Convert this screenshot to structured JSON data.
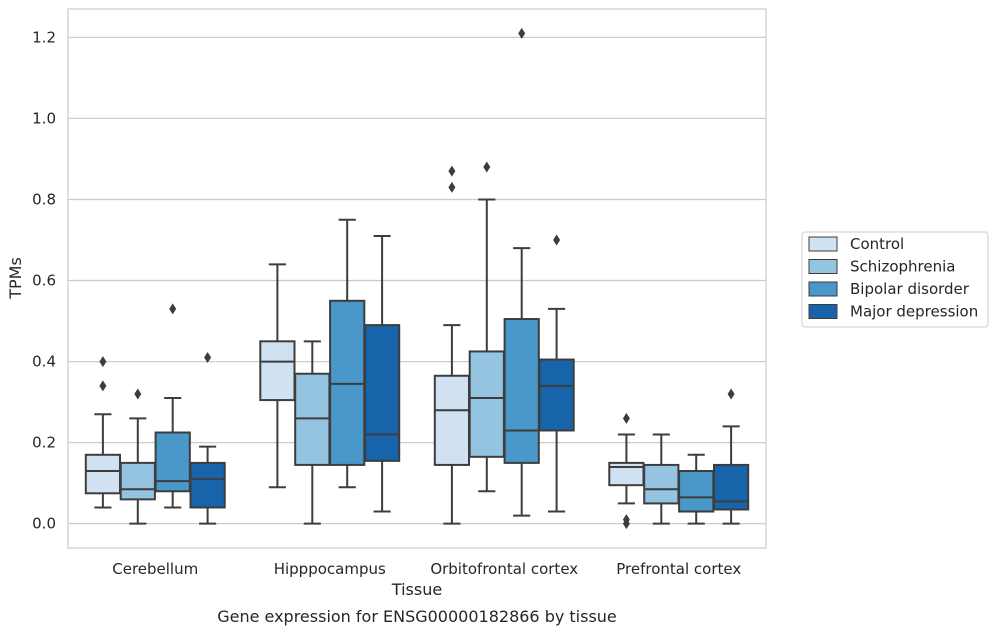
{
  "caption": "Gene expression for ENSG00000182866 by tissue",
  "chart_data": {
    "type": "box",
    "xlabel": "Tissue",
    "ylabel": "TPMs",
    "ylim": [
      -0.06,
      1.27
    ],
    "yticks": [
      "0.0",
      "0.2",
      "0.4",
      "0.6",
      "0.8",
      "1.0",
      "1.2"
    ],
    "grid": "horizontal",
    "legend_position": "right",
    "categories": [
      "Cerebellum",
      "Hipppocampus",
      "Orbitofrontal cortex",
      "Prefrontal cortex"
    ],
    "series": [
      {
        "name": "Control",
        "color": "#d0e1f2",
        "boxes": [
          {
            "whislo": 0.04,
            "q1": 0.075,
            "med": 0.13,
            "q3": 0.17,
            "whishi": 0.27,
            "fliers": [
              0.34,
              0.4
            ]
          },
          {
            "whislo": 0.09,
            "q1": 0.305,
            "med": 0.4,
            "q3": 0.45,
            "whishi": 0.64,
            "fliers": []
          },
          {
            "whislo": 0.0,
            "q1": 0.145,
            "med": 0.28,
            "q3": 0.365,
            "whishi": 0.49,
            "fliers": [
              0.83,
              0.87
            ]
          },
          {
            "whislo": 0.05,
            "q1": 0.095,
            "med": 0.14,
            "q3": 0.15,
            "whishi": 0.22,
            "fliers": [
              0.0,
              0.01,
              0.26
            ]
          }
        ]
      },
      {
        "name": "Schizophrenia",
        "color": "#94c4df",
        "boxes": [
          {
            "whislo": 0.0,
            "q1": 0.06,
            "med": 0.085,
            "q3": 0.15,
            "whishi": 0.26,
            "fliers": [
              0.32
            ]
          },
          {
            "whislo": 0.0,
            "q1": 0.145,
            "med": 0.26,
            "q3": 0.37,
            "whishi": 0.45,
            "fliers": []
          },
          {
            "whislo": 0.08,
            "q1": 0.165,
            "med": 0.31,
            "q3": 0.425,
            "whishi": 0.8,
            "fliers": [
              0.88
            ]
          },
          {
            "whislo": 0.0,
            "q1": 0.05,
            "med": 0.085,
            "q3": 0.145,
            "whishi": 0.22,
            "fliers": []
          }
        ]
      },
      {
        "name": "Bipolar disorder",
        "color": "#4a98c9",
        "boxes": [
          {
            "whislo": 0.04,
            "q1": 0.08,
            "med": 0.105,
            "q3": 0.225,
            "whishi": 0.31,
            "fliers": [
              0.53
            ]
          },
          {
            "whislo": 0.09,
            "q1": 0.145,
            "med": 0.345,
            "q3": 0.55,
            "whishi": 0.75,
            "fliers": []
          },
          {
            "whislo": 0.02,
            "q1": 0.15,
            "med": 0.23,
            "q3": 0.505,
            "whishi": 0.68,
            "fliers": [
              1.21
            ]
          },
          {
            "whislo": 0.0,
            "q1": 0.03,
            "med": 0.065,
            "q3": 0.13,
            "whishi": 0.17,
            "fliers": []
          }
        ]
      },
      {
        "name": "Major depression",
        "color": "#1764ab",
        "boxes": [
          {
            "whislo": 0.0,
            "q1": 0.04,
            "med": 0.11,
            "q3": 0.15,
            "whishi": 0.19,
            "fliers": [
              0.41
            ]
          },
          {
            "whislo": 0.03,
            "q1": 0.155,
            "med": 0.22,
            "q3": 0.49,
            "whishi": 0.71,
            "fliers": []
          },
          {
            "whislo": 0.03,
            "q1": 0.23,
            "med": 0.34,
            "q3": 0.405,
            "whishi": 0.53,
            "fliers": [
              0.7
            ]
          },
          {
            "whislo": 0.0,
            "q1": 0.035,
            "med": 0.055,
            "q3": 0.145,
            "whishi": 0.24,
            "fliers": [
              0.32
            ]
          }
        ]
      }
    ],
    "line_color": "#3d3d3d",
    "grid_color": "#cccccc"
  }
}
